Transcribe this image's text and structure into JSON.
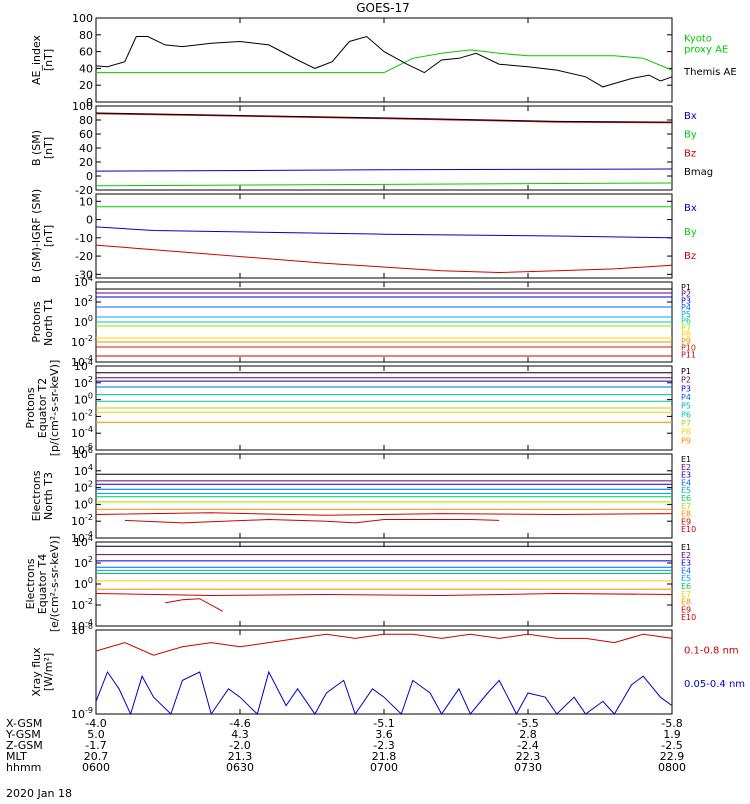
{
  "title": "GOES-17",
  "date": "2020 Jan 18",
  "chart_data": [
    {
      "type": "line",
      "id": "ae",
      "ylabel": "AE_index\n[nT]",
      "ylim": [
        0,
        100
      ],
      "yticks": [
        "0",
        "20",
        "40",
        "60",
        "80",
        "100"
      ],
      "series": [
        {
          "name": "Kyoto\nproxy AE",
          "color": "#00cc00",
          "x": [
            0,
            0.1,
            0.2,
            0.3,
            0.4,
            0.45,
            0.5,
            0.55,
            0.6,
            0.65,
            0.7,
            0.75,
            0.8,
            0.85,
            0.9,
            0.95,
            1.0
          ],
          "y": [
            35,
            35,
            35,
            35,
            35,
            35,
            35,
            52,
            58,
            62,
            58,
            55,
            55,
            55,
            55,
            52,
            38
          ]
        },
        {
          "name": "Themis AE",
          "color": "#000000",
          "x": [
            0,
            0.02,
            0.05,
            0.07,
            0.09,
            0.12,
            0.15,
            0.2,
            0.25,
            0.3,
            0.35,
            0.38,
            0.41,
            0.44,
            0.47,
            0.5,
            0.54,
            0.57,
            0.6,
            0.63,
            0.66,
            0.7,
            0.75,
            0.8,
            0.85,
            0.88,
            0.9,
            0.93,
            0.96,
            0.98,
            1.0
          ],
          "y": [
            43,
            42,
            48,
            78,
            78,
            68,
            66,
            70,
            72,
            68,
            50,
            40,
            48,
            72,
            78,
            60,
            45,
            35,
            50,
            52,
            58,
            45,
            42,
            38,
            30,
            18,
            22,
            28,
            32,
            25,
            30
          ]
        }
      ]
    },
    {
      "type": "line",
      "id": "bsm",
      "ylabel": "B (SM)\n[nT]",
      "ylim": [
        -20,
        100
      ],
      "yticks": [
        "-20",
        "0",
        "20",
        "40",
        "60",
        "80",
        "100"
      ],
      "series": [
        {
          "name": "Bx",
          "color": "#0000cc",
          "x": [
            0,
            0.3,
            0.5,
            1.0
          ],
          "y": [
            7,
            8,
            9,
            10
          ]
        },
        {
          "name": "By",
          "color": "#00cc00",
          "x": [
            0,
            0.5,
            1.0
          ],
          "y": [
            -14,
            -12,
            -10
          ]
        },
        {
          "name": "Bz",
          "color": "#cc0000",
          "x": [
            0,
            0.5,
            0.8,
            1.0
          ],
          "y": [
            89,
            82,
            77,
            76
          ]
        },
        {
          "name": "Bmag",
          "color": "#000000",
          "x": [
            0,
            0.5,
            0.8,
            1.0
          ],
          "y": [
            90,
            83,
            78,
            77
          ]
        }
      ]
    },
    {
      "type": "line",
      "id": "bigrf",
      "ylabel": "B (SM)-IGRF (SM)\n[nT]",
      "ylim": [
        -32,
        14
      ],
      "yticks": [
        "-30",
        "-20",
        "-10",
        "0",
        "10"
      ],
      "series": [
        {
          "name": "Bx",
          "color": "#0000cc",
          "x": [
            0,
            0.1,
            0.5,
            0.8,
            1.0
          ],
          "y": [
            -4,
            -6,
            -8,
            -9,
            -10
          ]
        },
        {
          "name": "By",
          "color": "#00cc00",
          "x": [
            0,
            0.5,
            1.0
          ],
          "y": [
            7,
            7,
            7
          ]
        },
        {
          "name": "Bz",
          "color": "#cc0000",
          "x": [
            0,
            0.2,
            0.4,
            0.6,
            0.7,
            0.8,
            0.9,
            1.0
          ],
          "y": [
            -14,
            -19,
            -24,
            -28,
            -29,
            -28,
            -27,
            -25
          ]
        }
      ]
    },
    {
      "type": "line",
      "id": "prot1",
      "ylabel": "Protons\nNorth T1",
      "logscale": true,
      "ylim": [
        -4,
        4
      ],
      "yticks": [
        "10^-4",
        "10^-2",
        "10^0",
        "10^2",
        "10^4"
      ],
      "series": [
        {
          "name": "P1",
          "color": "#000000",
          "x": [
            0,
            1
          ],
          "y": [
            3.3,
            3.3
          ]
        },
        {
          "name": "P2",
          "color": "#660066",
          "x": [
            0,
            1
          ],
          "y": [
            2.9,
            2.9
          ]
        },
        {
          "name": "P3",
          "color": "#0000cc",
          "x": [
            0,
            1
          ],
          "y": [
            2.5,
            2.5
          ]
        },
        {
          "name": "P4",
          "color": "#0066ff",
          "x": [
            0,
            1
          ],
          "y": [
            1.5,
            1.5
          ]
        },
        {
          "name": "P5",
          "color": "#00aadd",
          "x": [
            0,
            1
          ],
          "y": [
            0.5,
            0.5
          ]
        },
        {
          "name": "P6",
          "color": "#00cc99",
          "x": [
            0,
            1
          ],
          "y": [
            0,
            0
          ]
        },
        {
          "name": "P7",
          "color": "#aadd00",
          "x": [
            0,
            1
          ],
          "y": [
            -0.4,
            -0.4
          ]
        },
        {
          "name": "P8",
          "color": "#ffcc00",
          "x": [
            0,
            1
          ],
          "y": [
            -1.6,
            -1.6
          ]
        },
        {
          "name": "P9",
          "color": "#ff8800",
          "x": [
            0,
            1
          ],
          "y": [
            -2,
            -2
          ]
        },
        {
          "name": "P10",
          "color": "#cc2200",
          "x": [
            0,
            1
          ],
          "y": [
            -2.5,
            -2.5
          ]
        },
        {
          "name": "P11",
          "color": "#cc0000",
          "x": [
            0,
            1
          ],
          "y": [
            -3.4,
            -3.4
          ]
        }
      ]
    },
    {
      "type": "line",
      "id": "prot2",
      "ylabel": "Protons\nEquator T2\n[p/(cm²-s-sr-keV)]",
      "logscale": true,
      "ylim": [
        -6,
        4
      ],
      "yticks": [
        "10^-6",
        "10^-4",
        "10^-2",
        "10^0",
        "10^2",
        "10^4"
      ],
      "series": [
        {
          "name": "P1",
          "color": "#000000",
          "x": [
            0,
            1
          ],
          "y": [
            3.2,
            3.2
          ]
        },
        {
          "name": "P2",
          "color": "#660066",
          "x": [
            0,
            1
          ],
          "y": [
            2.6,
            2.6
          ]
        },
        {
          "name": "P3",
          "color": "#0000cc",
          "x": [
            0,
            1
          ],
          "y": [
            2.2,
            2.2
          ]
        },
        {
          "name": "P4",
          "color": "#0066ff",
          "x": [
            0,
            1
          ],
          "y": [
            1.5,
            1.5
          ]
        },
        {
          "name": "P5",
          "color": "#00aadd",
          "x": [
            0,
            1
          ],
          "y": [
            0.6,
            0.6
          ]
        },
        {
          "name": "P6",
          "color": "#00cc99",
          "x": [
            0,
            1
          ],
          "y": [
            -0.2,
            -0.2
          ]
        },
        {
          "name": "P7",
          "color": "#aadd00",
          "x": [
            0,
            1
          ],
          "y": [
            -1,
            -1
          ]
        },
        {
          "name": "P8",
          "color": "#ffcc00",
          "x": [
            0,
            1
          ],
          "y": [
            -1.5,
            -1.5
          ]
        },
        {
          "name": "P9",
          "color": "#ff8800",
          "x": [
            0,
            1
          ],
          "y": [
            -2.7,
            -2.7
          ]
        }
      ]
    },
    {
      "type": "line",
      "id": "elec3",
      "ylabel": "Electrons\nNorth T3",
      "logscale": true,
      "ylim": [
        -4,
        6
      ],
      "yticks": [
        "10^-4",
        "10^-2",
        "10^0",
        "10^2",
        "10^4",
        "10^6"
      ],
      "series": [
        {
          "name": "E1",
          "color": "#000000",
          "x": [
            0,
            1
          ],
          "y": [
            3.6,
            3.6
          ]
        },
        {
          "name": "E2",
          "color": "#660066",
          "x": [
            0,
            1
          ],
          "y": [
            2.8,
            2.8
          ]
        },
        {
          "name": "E3",
          "color": "#0000cc",
          "x": [
            0,
            1
          ],
          "y": [
            2.4,
            2.4
          ]
        },
        {
          "name": "E4",
          "color": "#0066ff",
          "x": [
            0,
            1
          ],
          "y": [
            1.8,
            1.8
          ]
        },
        {
          "name": "E5",
          "color": "#00aadd",
          "x": [
            0,
            1
          ],
          "y": [
            1.3,
            1.3
          ]
        },
        {
          "name": "E6",
          "color": "#00cc66",
          "x": [
            0,
            1
          ],
          "y": [
            0.9,
            0.9
          ]
        },
        {
          "name": "E7",
          "color": "#aadd00",
          "x": [
            0,
            1
          ],
          "y": [
            0.3,
            0.3
          ]
        },
        {
          "name": "E8",
          "color": "#ff8800",
          "x": [
            0,
            1
          ],
          "y": [
            -0.6,
            -0.6
          ]
        },
        {
          "name": "E9",
          "color": "#cc0000",
          "x": [
            0,
            0.2,
            0.4,
            0.6,
            0.8,
            1.0
          ],
          "y": [
            -1.2,
            -1,
            -1.3,
            -1.1,
            -1.2,
            -1.1
          ]
        },
        {
          "name": "E10",
          "color": "#cc0000",
          "x": [
            0.05,
            0.15,
            0.3,
            0.4,
            0.45,
            0.5,
            0.65,
            0.7
          ],
          "y": [
            -1.9,
            -2.2,
            -1.8,
            -2,
            -2.2,
            -1.8,
            -1.8,
            -1.9
          ]
        }
      ]
    },
    {
      "type": "line",
      "id": "elec4",
      "ylabel": "Electrons\nEquator T4\n[e/(cm²-s-sr-keV)]",
      "logscale": true,
      "ylim": [
        -4,
        4
      ],
      "yticks": [
        "10^-4",
        "10^-2",
        "10^0",
        "10^2",
        "10^4"
      ],
      "series": [
        {
          "name": "E1",
          "color": "#000000",
          "x": [
            0,
            1
          ],
          "y": [
            3.6,
            3.6
          ]
        },
        {
          "name": "E2",
          "color": "#660066",
          "x": [
            0,
            1
          ],
          "y": [
            2.8,
            2.8
          ]
        },
        {
          "name": "E3",
          "color": "#0000cc",
          "x": [
            0,
            1
          ],
          "y": [
            2.2,
            2.2
          ]
        },
        {
          "name": "E4",
          "color": "#0066ff",
          "x": [
            0,
            1
          ],
          "y": [
            1.6,
            1.6
          ]
        },
        {
          "name": "E5",
          "color": "#00aadd",
          "x": [
            0,
            1
          ],
          "y": [
            1.3,
            1.3
          ]
        },
        {
          "name": "E6",
          "color": "#00cc66",
          "x": [
            0,
            1
          ],
          "y": [
            1.0,
            1.0
          ]
        },
        {
          "name": "E7",
          "color": "#ffcc00",
          "x": [
            0,
            1
          ],
          "y": [
            0.3,
            0.3
          ]
        },
        {
          "name": "E8",
          "color": "#ff8800",
          "x": [
            0,
            1
          ],
          "y": [
            -0.5,
            -0.5
          ]
        },
        {
          "name": "E9",
          "color": "#cc0000",
          "x": [
            0,
            0.2,
            0.4,
            0.6,
            0.8,
            1.0
          ],
          "y": [
            -0.9,
            -1.1,
            -1,
            -1.1,
            -0.9,
            -1
          ]
        },
        {
          "name": "E10",
          "color": "#cc0000",
          "x": [
            0.12,
            0.15,
            0.18,
            0.22
          ],
          "y": [
            -1.8,
            -1.5,
            -1.4,
            -2.6
          ]
        }
      ]
    },
    {
      "type": "line",
      "id": "xray",
      "ylabel": "Xray flux\n[W/m²]",
      "logscale": true,
      "ylim": [
        -9,
        -8
      ],
      "yticks": [
        "10^-9",
        "10^-8"
      ],
      "series": [
        {
          "name": "0.1-0.8 nm",
          "color": "#cc0000",
          "x": [
            0,
            0.05,
            0.1,
            0.15,
            0.2,
            0.25,
            0.3,
            0.35,
            0.4,
            0.45,
            0.5,
            0.55,
            0.6,
            0.65,
            0.7,
            0.75,
            0.8,
            0.85,
            0.9,
            0.95,
            1.0
          ],
          "y": [
            -8.25,
            -8.15,
            -8.3,
            -8.2,
            -8.15,
            -8.2,
            -8.15,
            -8.1,
            -8.05,
            -8.1,
            -8.05,
            -8.05,
            -8.1,
            -8.05,
            -8.1,
            -8.05,
            -8.1,
            -8.1,
            -8.15,
            -8.05,
            -8.1
          ]
        },
        {
          "name": "0.05-0.4 nm",
          "color": "#0000cc",
          "x": [
            0,
            0.02,
            0.04,
            0.06,
            0.08,
            0.1,
            0.13,
            0.15,
            0.18,
            0.2,
            0.23,
            0.25,
            0.28,
            0.3,
            0.33,
            0.35,
            0.38,
            0.4,
            0.43,
            0.45,
            0.48,
            0.5,
            0.53,
            0.55,
            0.58,
            0.6,
            0.63,
            0.65,
            0.68,
            0.7,
            0.73,
            0.75,
            0.78,
            0.8,
            0.83,
            0.85,
            0.88,
            0.9,
            0.93,
            0.95,
            0.98,
            1.0
          ],
          "y": [
            -8.85,
            -8.5,
            -8.7,
            -9,
            -8.55,
            -8.8,
            -9,
            -8.6,
            -8.5,
            -9,
            -8.7,
            -8.8,
            -9,
            -8.5,
            -8.9,
            -8.7,
            -9,
            -8.75,
            -8.6,
            -9,
            -8.7,
            -8.8,
            -9,
            -8.6,
            -8.75,
            -9,
            -8.7,
            -9,
            -8.75,
            -8.6,
            -9,
            -8.75,
            -8.8,
            -9,
            -8.8,
            -9,
            -8.85,
            -9,
            -8.65,
            -8.55,
            -8.8,
            -8.9
          ]
        }
      ]
    }
  ],
  "footer": {
    "row_labels": [
      "X-GSM",
      "Y-GSM",
      "Z-GSM",
      "MLT",
      "hhmm"
    ],
    "columns": [
      [
        "-4.0",
        "5.0",
        "-1.7",
        "20.7",
        "0600"
      ],
      [
        "-4.6",
        "4.3",
        "-2.0",
        "21.3",
        "0630"
      ],
      [
        "-5.1",
        "3.6",
        "-2.3",
        "21.8",
        "0700"
      ],
      [
        "-5.5",
        "2.8",
        "-2.4",
        "22.3",
        "0730"
      ],
      [
        "-5.8",
        "1.9",
        "-2.5",
        "22.9",
        "0800"
      ]
    ]
  }
}
